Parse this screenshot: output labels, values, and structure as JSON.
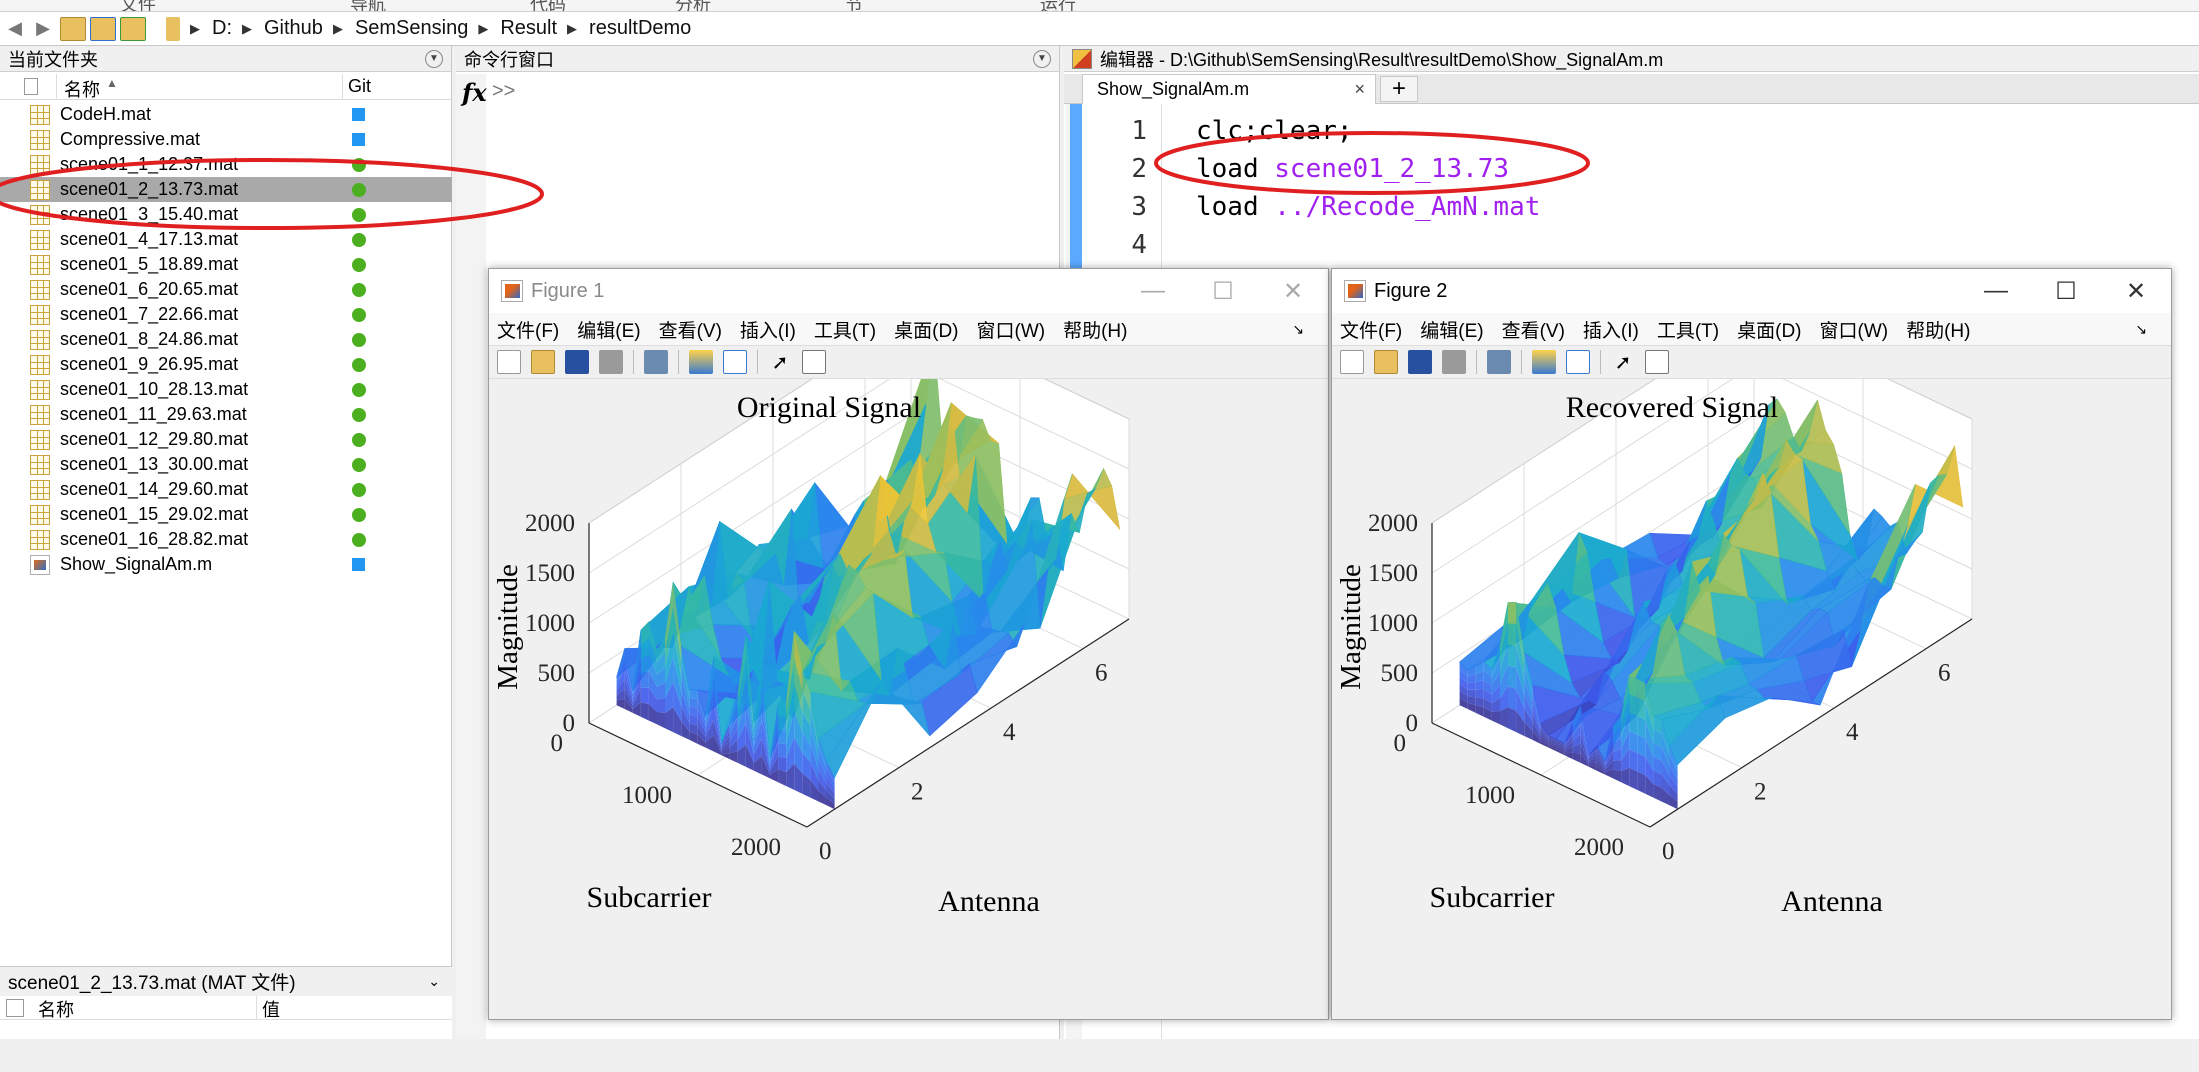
{
  "address_bar": {
    "crumbs": [
      "D:",
      "Github",
      "SemSensing",
      "Result",
      "resultDemo"
    ]
  },
  "folder_panel": {
    "title": "当前文件夹",
    "col_name": "名称",
    "col_git": "Git",
    "files": [
      {
        "name": "CodeH.mat",
        "type": "mat",
        "git": "square"
      },
      {
        "name": "Compressive.mat",
        "type": "mat",
        "git": "square"
      },
      {
        "name": "scene01_1_12.37.mat",
        "type": "mat",
        "git": "dot"
      },
      {
        "name": "scene01_2_13.73.mat",
        "type": "mat",
        "git": "dot",
        "selected": true
      },
      {
        "name": "scene01_3_15.40.mat",
        "type": "mat",
        "git": "dot"
      },
      {
        "name": "scene01_4_17.13.mat",
        "type": "mat",
        "git": "dot"
      },
      {
        "name": "scene01_5_18.89.mat",
        "type": "mat",
        "git": "dot"
      },
      {
        "name": "scene01_6_20.65.mat",
        "type": "mat",
        "git": "dot"
      },
      {
        "name": "scene01_7_22.66.mat",
        "type": "mat",
        "git": "dot"
      },
      {
        "name": "scene01_8_24.86.mat",
        "type": "mat",
        "git": "dot"
      },
      {
        "name": "scene01_9_26.95.mat",
        "type": "mat",
        "git": "dot"
      },
      {
        "name": "scene01_10_28.13.mat",
        "type": "mat",
        "git": "dot"
      },
      {
        "name": "scene01_11_29.63.mat",
        "type": "mat",
        "git": "dot"
      },
      {
        "name": "scene01_12_29.80.mat",
        "type": "mat",
        "git": "dot"
      },
      {
        "name": "scene01_13_30.00.mat",
        "type": "mat",
        "git": "dot"
      },
      {
        "name": "scene01_14_29.60.mat",
        "type": "mat",
        "git": "dot"
      },
      {
        "name": "scene01_15_29.02.mat",
        "type": "mat",
        "git": "dot"
      },
      {
        "name": "scene01_16_28.82.mat",
        "type": "mat",
        "git": "dot"
      },
      {
        "name": "Show_SignalAm.m",
        "type": "m",
        "git": "square"
      }
    ],
    "detail_title": "scene01_2_13.73.mat  (MAT 文件)",
    "detail_col_name": "名称",
    "detail_col_value": "值"
  },
  "command_window": {
    "title": "命令行窗口",
    "fx": "fx",
    "prompt": ">>"
  },
  "editor": {
    "title": "编辑器 - D:\\Github\\SemSensing\\Result\\resultDemo\\Show_SignalAm.m",
    "tab": "Show_SignalAm.m",
    "tab_close": "×",
    "tab_add": "+",
    "line_numbers": [
      "1",
      "2",
      "3",
      "4"
    ],
    "line1": "clc;clear;",
    "line2_kw": "load",
    "line2_arg": "scene01_2_13.73",
    "line3_kw": "load",
    "line3_arg": "../Recode_AmN.mat"
  },
  "figure1": {
    "window_title": "Figure 1",
    "menu": [
      "文件(F)",
      "编辑(E)",
      "查看(V)",
      "插入(I)",
      "工具(T)",
      "桌面(D)",
      "窗口(W)",
      "帮助(H)"
    ]
  },
  "figure2": {
    "window_title": "Figure 2",
    "menu": [
      "文件(F)",
      "编辑(E)",
      "查看(V)",
      "插入(I)",
      "工具(T)",
      "桌面(D)",
      "窗口(W)",
      "帮助(H)"
    ]
  },
  "chart_data": [
    {
      "type": "surface",
      "title": "Original Signal",
      "xlabel": "Subcarrier",
      "ylabel": "Antenna",
      "zlabel": "Magnitude",
      "xlim": [
        0,
        2000
      ],
      "ylim": [
        0,
        7
      ],
      "zlim": [
        0,
        2000
      ],
      "x_ticks": [
        "0",
        "1000",
        "2000"
      ],
      "y_ticks": [
        "0",
        "2",
        "4",
        "6"
      ],
      "z_ticks": [
        "0",
        "500",
        "1000",
        "1500",
        "2000"
      ],
      "colormap": "parula"
    },
    {
      "type": "surface",
      "title": "Recovered Signal",
      "xlabel": "Subcarrier",
      "ylabel": "Antenna",
      "zlabel": "Magnitude",
      "xlim": [
        0,
        2000
      ],
      "ylim": [
        0,
        7
      ],
      "zlim": [
        0,
        2000
      ],
      "x_ticks": [
        "0",
        "1000",
        "2000"
      ],
      "y_ticks": [
        "0",
        "2",
        "4",
        "6"
      ],
      "z_ticks": [
        "0",
        "500",
        "1000",
        "1500",
        "2000"
      ],
      "colormap": "parula"
    }
  ],
  "colors": {
    "annotation_red": "#e02020",
    "git_green": "#4caf20",
    "git_blue": "#2196f3",
    "keyword_blue": "#0000ff",
    "string_purple": "#a020f0"
  }
}
